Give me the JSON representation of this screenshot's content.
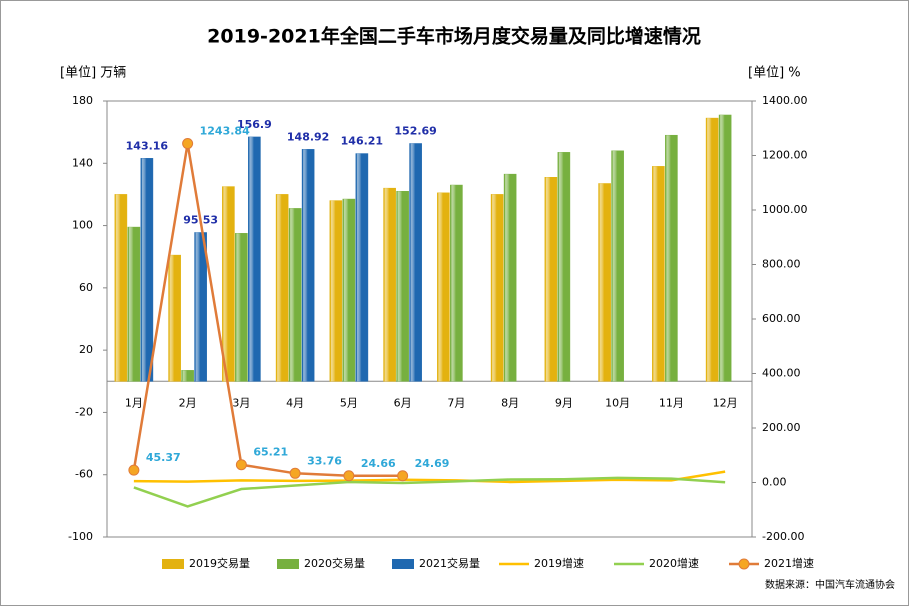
{
  "chart_data": {
    "type": "bar",
    "title": "2019-2021年全国二手车市场月度交易量及同比增速情况",
    "y_label": "[单位] 万辆",
    "y2_label": "[单位] %",
    "source": "数据来源：中国汽车流通协会",
    "categories": [
      "1月",
      "2月",
      "3月",
      "4月",
      "5月",
      "6月",
      "7月",
      "8月",
      "9月",
      "10月",
      "11月",
      "12月"
    ],
    "ylim": [
      -100,
      180
    ],
    "yticks": [
      -100,
      -60,
      -20,
      20,
      60,
      100,
      140,
      180
    ],
    "y2lim": [
      -200,
      1400
    ],
    "y2ticks": [
      {
        "value": -200,
        "label": "-200.00"
      },
      {
        "value": 0,
        "label": "0.00"
      },
      {
        "value": 200,
        "label": "200.00"
      },
      {
        "value": 400,
        "label": "400.00"
      },
      {
        "value": 600,
        "label": "600.00"
      },
      {
        "value": 800,
        "label": "800.00"
      },
      {
        "value": 1000,
        "label": "1000.00"
      },
      {
        "value": 1200,
        "label": "1200.00"
      },
      {
        "value": 1400,
        "label": "1400.00"
      }
    ],
    "grid": false,
    "legend": "bottom",
    "series": [
      {
        "name": "2019交易量",
        "type": "bar",
        "color": "#e3b210",
        "values": [
          120,
          81,
          125,
          120,
          116,
          124,
          121,
          120,
          131,
          127,
          138,
          169
        ]
      },
      {
        "name": "2020交易量",
        "type": "bar",
        "color": "#77b03f",
        "values": [
          99,
          7,
          95,
          111,
          117,
          122,
          126,
          133,
          147,
          148,
          158,
          171
        ]
      },
      {
        "name": "2021交易量",
        "type": "bar",
        "color": "#1f68b0",
        "values": [
          143.16,
          95.53,
          156.9,
          148.92,
          146.21,
          152.69,
          null,
          null,
          null,
          null,
          null,
          null
        ],
        "labels": true
      },
      {
        "name": "2019增速",
        "type": "line",
        "axis": "y2",
        "color": "#ffc000",
        "values": [
          5,
          3,
          8,
          6,
          7,
          10,
          8,
          2,
          6,
          10,
          8,
          40
        ]
      },
      {
        "name": "2020增速",
        "type": "line",
        "axis": "y2",
        "color": "#92d050",
        "values": [
          -18,
          -88,
          -24,
          -11,
          2,
          -2,
          4,
          11,
          12,
          17,
          14,
          1
        ]
      },
      {
        "name": "2021增速",
        "type": "line",
        "axis": "y2",
        "color": "#e07b39",
        "marker": "#f5a623",
        "values": [
          45.37,
          1243.84,
          65.21,
          33.76,
          24.66,
          24.69,
          null,
          null,
          null,
          null,
          null,
          null
        ],
        "labels": true
      }
    ]
  }
}
